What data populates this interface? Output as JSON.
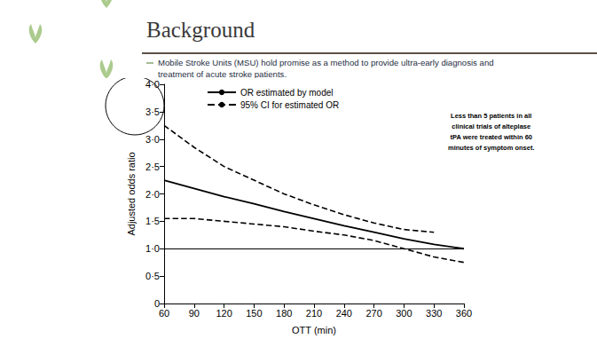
{
  "slide": {
    "title": "Background",
    "bullets": [
      "Mobile Stroke Units (MSU) hold promise as a method to provide ultra-early diagnosis and treatment of acute stroke patients."
    ]
  },
  "chart_data": {
    "type": "line",
    "x": [
      60,
      90,
      120,
      150,
      180,
      210,
      240,
      270,
      300,
      330,
      360
    ],
    "series": [
      {
        "name": "OR estimated by model",
        "color": "#000000",
        "line_style": "solid",
        "values": [
          2.25,
          2.1,
          1.95,
          1.82,
          1.68,
          1.55,
          1.42,
          1.3,
          1.18,
          1.08,
          1.0
        ]
      },
      {
        "name": "95% CI for estimated OR",
        "color": "#000000",
        "line_style": "dashed",
        "values": [
          3.25,
          2.85,
          2.5,
          2.25,
          2.0,
          1.8,
          1.62,
          1.47,
          1.35,
          1.3,
          null
        ]
      },
      {
        "name": "95% CI for estimated OR",
        "color": "#000000",
        "line_style": "dashed",
        "values": [
          1.55,
          1.55,
          1.5,
          1.45,
          1.4,
          1.32,
          1.25,
          1.15,
          1.0,
          0.85,
          0.75
        ]
      }
    ],
    "hlines": [
      1
    ],
    "xlim": [
      60,
      360
    ],
    "xticks": [
      60,
      90,
      120,
      150,
      180,
      210,
      240,
      270,
      300,
      330,
      360
    ],
    "ylim": [
      0,
      4
    ],
    "yticks": [
      0,
      {
        "value": 0.5,
        "label": "0·5"
      },
      {
        "value": 1,
        "label": "1·0"
      },
      {
        "value": 1.5,
        "label": "1·5"
      },
      {
        "value": 2,
        "label": "2·0"
      },
      {
        "value": 2.5,
        "label": "2·5"
      },
      {
        "value": 3,
        "label": "3·0"
      },
      {
        "value": 3.5,
        "label": "3·5"
      },
      {
        "value": 4,
        "label": "4·0"
      }
    ],
    "x_label": "OTT (min)",
    "y_label": "Adjusted odds ratio",
    "annotation": "Less than 5 patients in all\nclinical trials of alteplase\ntPA were treated within 60\nminutes of symptom onset.",
    "legend": "upper left",
    "grid": false
  }
}
